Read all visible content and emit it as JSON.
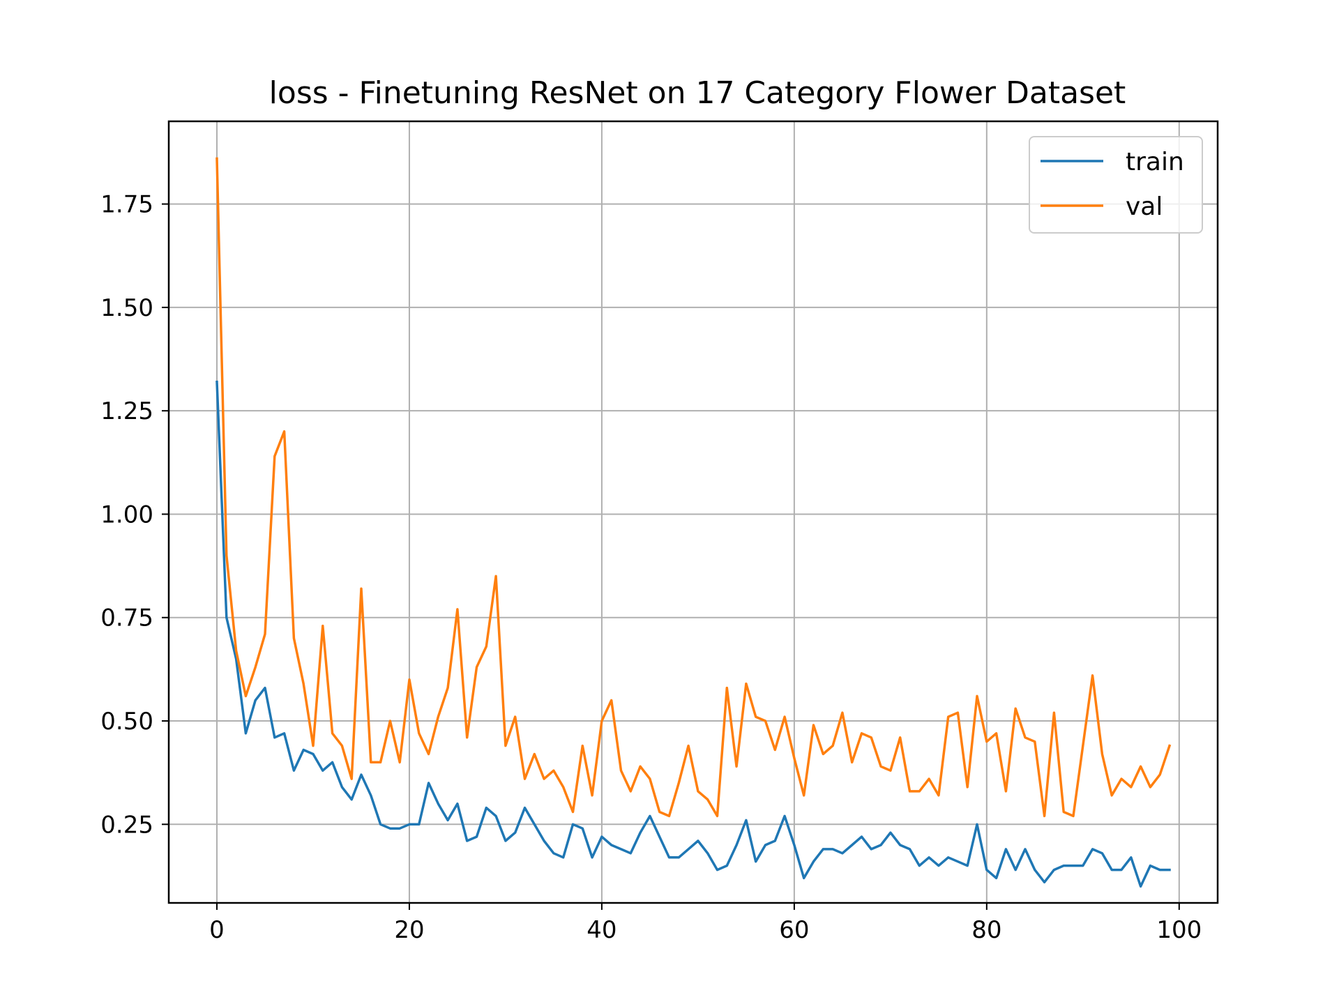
{
  "chart_data": {
    "type": "line",
    "title": "loss - Finetuning ResNet on 17 Category Flower Dataset",
    "xlabel": "",
    "ylabel": "",
    "xlim": [
      -5,
      104
    ],
    "ylim": [
      0.06,
      1.95
    ],
    "xticks": [
      0,
      20,
      40,
      60,
      80,
      100
    ],
    "xtick_labels": [
      "0",
      "20",
      "40",
      "60",
      "80",
      "100"
    ],
    "yticks": [
      0.25,
      0.5,
      0.75,
      1.0,
      1.25,
      1.5,
      1.75
    ],
    "ytick_labels": [
      "0.25",
      "0.50",
      "0.75",
      "1.00",
      "1.25",
      "1.50",
      "1.75"
    ],
    "grid": true,
    "legend_position": "top-right",
    "series": [
      {
        "name": "train",
        "color": "#1f77b4",
        "x": [
          0,
          1,
          2,
          3,
          4,
          5,
          6,
          7,
          8,
          9,
          10,
          11,
          12,
          13,
          14,
          15,
          16,
          17,
          18,
          19,
          20,
          21,
          22,
          23,
          24,
          25,
          26,
          27,
          28,
          29,
          30,
          31,
          32,
          33,
          34,
          35,
          36,
          37,
          38,
          39,
          40,
          41,
          42,
          43,
          44,
          45,
          46,
          47,
          48,
          49,
          50,
          51,
          52,
          53,
          54,
          55,
          56,
          57,
          58,
          59,
          60,
          61,
          62,
          63,
          64,
          65,
          66,
          67,
          68,
          69,
          70,
          71,
          72,
          73,
          74,
          75,
          76,
          77,
          78,
          79,
          80,
          81,
          82,
          83,
          84,
          85,
          86,
          87,
          88,
          89,
          90,
          91,
          92,
          93,
          94,
          95,
          96,
          97,
          98,
          99
        ],
        "values": [
          1.32,
          0.75,
          0.65,
          0.47,
          0.55,
          0.58,
          0.46,
          0.47,
          0.38,
          0.43,
          0.42,
          0.38,
          0.4,
          0.34,
          0.31,
          0.37,
          0.32,
          0.25,
          0.24,
          0.24,
          0.25,
          0.25,
          0.35,
          0.3,
          0.26,
          0.3,
          0.21,
          0.22,
          0.29,
          0.27,
          0.21,
          0.23,
          0.29,
          0.25,
          0.21,
          0.18,
          0.17,
          0.25,
          0.24,
          0.17,
          0.22,
          0.2,
          0.19,
          0.18,
          0.23,
          0.27,
          0.22,
          0.17,
          0.17,
          0.19,
          0.21,
          0.18,
          0.14,
          0.15,
          0.2,
          0.26,
          0.16,
          0.2,
          0.21,
          0.27,
          0.2,
          0.12,
          0.16,
          0.19,
          0.19,
          0.18,
          0.2,
          0.22,
          0.19,
          0.2,
          0.23,
          0.2,
          0.19,
          0.15,
          0.17,
          0.15,
          0.17,
          0.16,
          0.15,
          0.25,
          0.14,
          0.12,
          0.19,
          0.14,
          0.19,
          0.14,
          0.11,
          0.14,
          0.15,
          0.15,
          0.15,
          0.19,
          0.18,
          0.14,
          0.14,
          0.17,
          0.1,
          0.15,
          0.14,
          0.14
        ]
      },
      {
        "name": "val",
        "color": "#ff7f0e",
        "x": [
          0,
          1,
          2,
          3,
          4,
          5,
          6,
          7,
          8,
          9,
          10,
          11,
          12,
          13,
          14,
          15,
          16,
          17,
          18,
          19,
          20,
          21,
          22,
          23,
          24,
          25,
          26,
          27,
          28,
          29,
          30,
          31,
          32,
          33,
          34,
          35,
          36,
          37,
          38,
          39,
          40,
          41,
          42,
          43,
          44,
          45,
          46,
          47,
          48,
          49,
          50,
          51,
          52,
          53,
          54,
          55,
          56,
          57,
          58,
          59,
          60,
          61,
          62,
          63,
          64,
          65,
          66,
          67,
          68,
          69,
          70,
          71,
          72,
          73,
          74,
          75,
          76,
          77,
          78,
          79,
          80,
          81,
          82,
          83,
          84,
          85,
          86,
          87,
          88,
          89,
          90,
          91,
          92,
          93,
          94,
          95,
          96,
          97,
          98,
          99
        ],
        "values": [
          1.86,
          0.9,
          0.67,
          0.56,
          0.63,
          0.71,
          1.14,
          1.2,
          0.7,
          0.59,
          0.44,
          0.73,
          0.47,
          0.44,
          0.36,
          0.82,
          0.4,
          0.4,
          0.5,
          0.4,
          0.6,
          0.47,
          0.42,
          0.51,
          0.58,
          0.77,
          0.46,
          0.63,
          0.68,
          0.85,
          0.44,
          0.51,
          0.36,
          0.42,
          0.36,
          0.38,
          0.34,
          0.28,
          0.44,
          0.32,
          0.5,
          0.55,
          0.38,
          0.33,
          0.39,
          0.36,
          0.28,
          0.27,
          0.35,
          0.44,
          0.33,
          0.31,
          0.27,
          0.58,
          0.39,
          0.59,
          0.51,
          0.5,
          0.43,
          0.51,
          0.41,
          0.32,
          0.49,
          0.42,
          0.44,
          0.52,
          0.4,
          0.47,
          0.46,
          0.39,
          0.38,
          0.46,
          0.33,
          0.33,
          0.36,
          0.32,
          0.51,
          0.52,
          0.34,
          0.56,
          0.45,
          0.47,
          0.33,
          0.53,
          0.46,
          0.45,
          0.27,
          0.52,
          0.28,
          0.27,
          0.44,
          0.61,
          0.42,
          0.32,
          0.36,
          0.34,
          0.39,
          0.34,
          0.37,
          0.44
        ]
      }
    ]
  }
}
